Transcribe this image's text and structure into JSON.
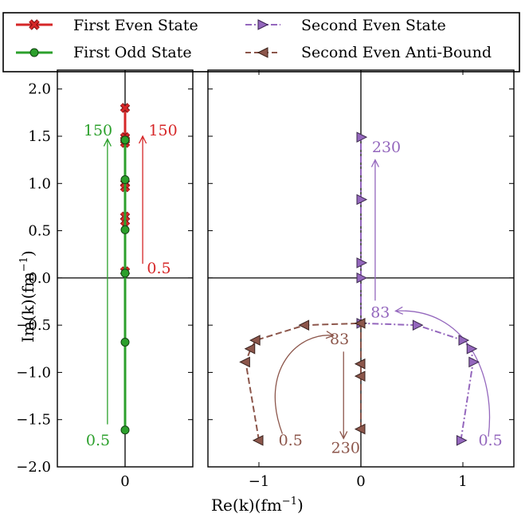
{
  "chart_data": {
    "type": "scatter",
    "title": "",
    "xlabel": "Re(k)(fm⁻¹)",
    "ylabel": "Im(k)(fm⁻¹)",
    "xlabel_text": "Re(k)(fm",
    "ylabel_text": "Im(k)(fm",
    "label_exponent": "−1",
    "ylim": [
      -2.0,
      2.2
    ],
    "panels": [
      {
        "name": "left",
        "xlim": [
          -0.5,
          0.5
        ],
        "xticks": [
          0
        ],
        "xtick_labels": [
          "0"
        ]
      },
      {
        "name": "right",
        "xlim": [
          -1.5,
          1.5
        ],
        "xticks": [
          -1,
          0,
          1
        ],
        "xtick_labels": [
          "−1",
          "0",
          "1"
        ]
      }
    ],
    "yticks": [
      -2.0,
      -1.5,
      -1.0,
      -0.5,
      0.0,
      0.5,
      1.0,
      1.5,
      2.0
    ],
    "ytick_labels": [
      "−2.0",
      "−1.5",
      "−1.0",
      "−0.5",
      "0.0",
      "0.5",
      "1.0",
      "1.5",
      "2.0"
    ],
    "legend": {
      "position": "top",
      "entries": [
        "First Even State",
        "First Odd State",
        "Second Even State",
        "Second Even Anti-Bound"
      ]
    },
    "series": [
      {
        "name": "First Even State",
        "panel": "left",
        "color": "#d62728",
        "marker": "x",
        "linestyle": "solid",
        "x": [
          0,
          0,
          0,
          0,
          0,
          0,
          0,
          0,
          0
        ],
        "y": [
          0.07,
          0.6,
          0.65,
          0.96,
          1.0,
          1.43,
          1.46,
          1.49,
          1.8
        ]
      },
      {
        "name": "First Odd State",
        "panel": "left",
        "color": "#2ca02c",
        "marker": "o",
        "linestyle": "solid",
        "x": [
          0,
          0,
          0,
          0,
          0,
          0
        ],
        "y": [
          -1.61,
          -0.68,
          0.05,
          0.51,
          1.04,
          1.46
        ]
      },
      {
        "name": "Second Even State",
        "panel": "right",
        "color": "#9467bd",
        "marker": ">",
        "linestyle": "dashdot",
        "x": [
          0.98,
          1.1,
          1.08,
          1.0,
          0.55,
          0.0,
          0.0,
          0.0,
          0.0,
          0.0
        ],
        "y": [
          -1.72,
          -0.89,
          -0.75,
          -0.66,
          -0.5,
          -0.48,
          0.0,
          0.16,
          0.83,
          1.49
        ]
      },
      {
        "name": "Second Even Anti-Bound",
        "panel": "right",
        "color": "#8c564b",
        "marker": "<",
        "linestyle": "dashed",
        "x": [
          -1.0,
          -1.13,
          -1.08,
          -1.03,
          -0.55,
          0.0,
          0.0,
          0.0,
          0.0
        ],
        "y": [
          -1.72,
          -0.89,
          -0.75,
          -0.66,
          -0.5,
          -0.48,
          -1.04,
          -0.91,
          -1.6
        ]
      }
    ],
    "annotations": [
      {
        "text": "150",
        "panel": "left",
        "color": "#2ca02c",
        "x": -0.2,
        "y": 1.56
      },
      {
        "text": "0.5",
        "panel": "left",
        "color": "#2ca02c",
        "x": -0.2,
        "y": -1.72
      },
      {
        "text": "150",
        "panel": "left",
        "color": "#d62728",
        "x": 0.28,
        "y": 1.56
      },
      {
        "text": "0.5",
        "panel": "left",
        "color": "#d62728",
        "x": 0.25,
        "y": 0.1
      },
      {
        "text": "230",
        "panel": "right",
        "color": "#9467bd",
        "x": 0.25,
        "y": 1.38
      },
      {
        "text": "83",
        "panel": "right",
        "color": "#9467bd",
        "x": 0.19,
        "y": -0.37
      },
      {
        "text": "0.5",
        "panel": "right",
        "color": "#9467bd",
        "x": 1.27,
        "y": -1.72
      },
      {
        "text": "83",
        "panel": "right",
        "color": "#8c564b",
        "x": -0.21,
        "y": -0.65
      },
      {
        "text": "0.5",
        "panel": "right",
        "color": "#8c564b",
        "x": -0.69,
        "y": -1.72
      },
      {
        "text": "230",
        "panel": "right",
        "color": "#8c564b",
        "x": -0.15,
        "y": -1.8
      }
    ],
    "arrows": [
      {
        "panel": "left",
        "color": "#2ca02c",
        "from": [
          -0.13,
          -1.55
        ],
        "to": [
          -0.13,
          1.47
        ]
      },
      {
        "panel": "left",
        "color": "#d62728",
        "from": [
          0.13,
          0.15
        ],
        "to": [
          0.13,
          1.5
        ]
      },
      {
        "panel": "right",
        "color": "#9467bd",
        "from": [
          0.14,
          -0.24
        ],
        "to": [
          0.14,
          1.25
        ]
      },
      {
        "panel": "right",
        "color": "#9467bd",
        "from": [
          1.25,
          -1.68
        ],
        "to": [
          0.34,
          -0.35
        ],
        "curved": true
      },
      {
        "panel": "right",
        "color": "#8c564b",
        "from": [
          -0.77,
          -1.65
        ],
        "to": [
          -0.27,
          -0.61
        ],
        "curved": true
      },
      {
        "panel": "right",
        "color": "#8c564b",
        "from": [
          -0.17,
          -0.78
        ],
        "to": [
          -0.17,
          -1.7
        ]
      }
    ]
  }
}
